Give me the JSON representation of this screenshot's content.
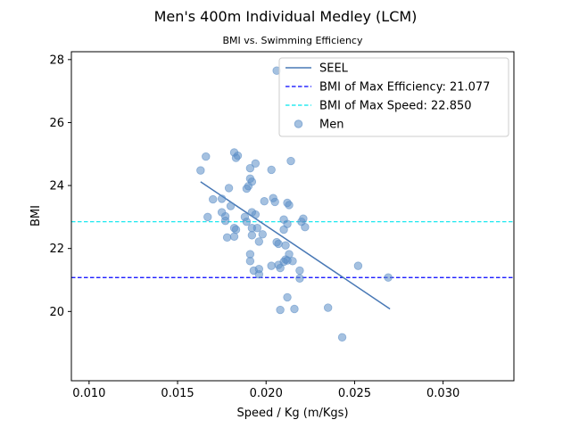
{
  "chart_data": {
    "type": "scatter",
    "title": "Men's 400m Individual Medley (LCM)",
    "subtitle": "BMI vs. Swimming Efficiency",
    "xlabel": "Speed / Kg (m/Kgs)",
    "ylabel": "BMI",
    "xlim": [
      0.009,
      0.034
    ],
    "ylim": [
      17.8,
      28.25
    ],
    "xticks": [
      "0.010",
      "0.015",
      "0.020",
      "0.025",
      "0.030"
    ],
    "yticks": [
      "20",
      "22",
      "24",
      "26",
      "28"
    ],
    "grid": false,
    "legend_position": "top-right",
    "legend": [
      {
        "label": "SEEL",
        "style": "line",
        "color": "#4878b5"
      },
      {
        "label": "BMI of Max Efficiency: 21.077",
        "style": "dashed",
        "color": "#0000ff"
      },
      {
        "label": "BMI of Max Speed: 22.850",
        "style": "dashed",
        "color": "#00e5ee"
      },
      {
        "label": "Men",
        "style": "marker",
        "color": "#5b8ec6"
      }
    ],
    "hlines": [
      {
        "y": 21.077,
        "color": "#0000ff"
      },
      {
        "y": 22.85,
        "color": "#00e5ee"
      }
    ],
    "fit_line": {
      "x": [
        0.0163,
        0.027
      ],
      "y": [
        24.12,
        20.08
      ]
    },
    "series": [
      {
        "name": "Men",
        "color": "#5b8ec6",
        "points": [
          [
            0.0206,
            27.65
          ],
          [
            0.0182,
            25.05
          ],
          [
            0.0184,
            24.95
          ],
          [
            0.0166,
            24.92
          ],
          [
            0.0183,
            24.88
          ],
          [
            0.0214,
            24.78
          ],
          [
            0.0194,
            24.7
          ],
          [
            0.0191,
            24.55
          ],
          [
            0.0203,
            24.5
          ],
          [
            0.0163,
            24.48
          ],
          [
            0.0191,
            24.22
          ],
          [
            0.0192,
            24.12
          ],
          [
            0.019,
            23.98
          ],
          [
            0.0189,
            23.9
          ],
          [
            0.0179,
            23.92
          ],
          [
            0.017,
            23.56
          ],
          [
            0.0175,
            23.58
          ],
          [
            0.0204,
            23.6
          ],
          [
            0.0199,
            23.5
          ],
          [
            0.0205,
            23.48
          ],
          [
            0.0212,
            23.45
          ],
          [
            0.0213,
            23.38
          ],
          [
            0.018,
            23.35
          ],
          [
            0.0175,
            23.15
          ],
          [
            0.0192,
            23.15
          ],
          [
            0.0177,
            23.02
          ],
          [
            0.0194,
            23.08
          ],
          [
            0.0188,
            23.0
          ],
          [
            0.0167,
            23.0
          ],
          [
            0.0221,
            22.95
          ],
          [
            0.021,
            22.92
          ],
          [
            0.022,
            22.85
          ],
          [
            0.0177,
            22.88
          ],
          [
            0.0189,
            22.85
          ],
          [
            0.0212,
            22.78
          ],
          [
            0.0192,
            22.65
          ],
          [
            0.0195,
            22.65
          ],
          [
            0.0182,
            22.65
          ],
          [
            0.0183,
            22.6
          ],
          [
            0.021,
            22.6
          ],
          [
            0.0222,
            22.68
          ],
          [
            0.0198,
            22.45
          ],
          [
            0.0192,
            22.42
          ],
          [
            0.0182,
            22.38
          ],
          [
            0.0178,
            22.35
          ],
          [
            0.0196,
            22.22
          ],
          [
            0.0206,
            22.2
          ],
          [
            0.0207,
            22.15
          ],
          [
            0.0211,
            22.1
          ],
          [
            0.0213,
            21.82
          ],
          [
            0.0191,
            21.82
          ],
          [
            0.0191,
            21.6
          ],
          [
            0.0211,
            21.65
          ],
          [
            0.0212,
            21.62
          ],
          [
            0.0215,
            21.6
          ],
          [
            0.021,
            21.58
          ],
          [
            0.0207,
            21.48
          ],
          [
            0.0203,
            21.45
          ],
          [
            0.0193,
            21.3
          ],
          [
            0.0196,
            21.35
          ],
          [
            0.0208,
            21.38
          ],
          [
            0.0219,
            21.3
          ],
          [
            0.0196,
            21.18
          ],
          [
            0.0252,
            21.45
          ],
          [
            0.0269,
            21.08
          ],
          [
            0.0219,
            21.05
          ],
          [
            0.0212,
            20.45
          ],
          [
            0.0235,
            20.12
          ],
          [
            0.0208,
            20.05
          ],
          [
            0.0216,
            20.08
          ],
          [
            0.0243,
            19.18
          ]
        ]
      }
    ]
  }
}
